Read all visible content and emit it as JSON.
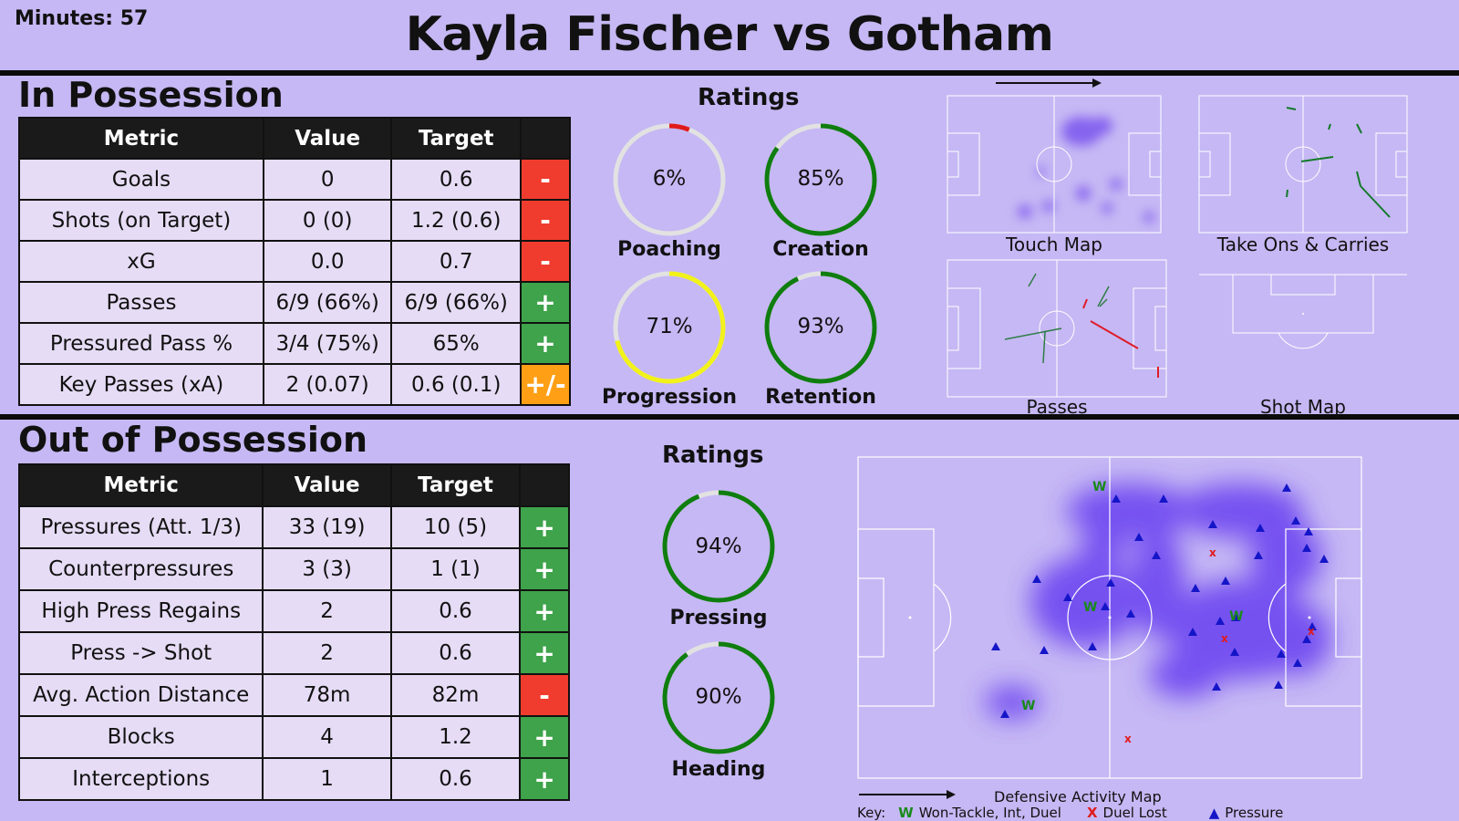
{
  "header": {
    "minutes": "Minutes: 57",
    "title": "Kayla Fischer vs Gotham"
  },
  "in_possession": {
    "title": "In Possession",
    "columns": [
      "Metric",
      "Value",
      "Target",
      ""
    ],
    "rows": [
      {
        "metric": "Goals",
        "value": "0",
        "target": "0.6",
        "status": "-",
        "status_color": "#f03c2e"
      },
      {
        "metric": "Shots (on Target)",
        "value": "0 (0)",
        "target": "1.2 (0.6)",
        "status": "-",
        "status_color": "#f03c2e"
      },
      {
        "metric": "xG",
        "value": "0.0",
        "target": "0.7",
        "status": "-",
        "status_color": "#f03c2e"
      },
      {
        "metric": "Passes",
        "value": "6/9 (66%)",
        "target": "6/9 (66%)",
        "status": "+",
        "status_color": "#3ea34a"
      },
      {
        "metric": "Pressured Pass %",
        "value": "3/4 (75%)",
        "target": "65%",
        "status": "+",
        "status_color": "#3ea34a"
      },
      {
        "metric": "Key Passes (xA)",
        "value": "2 (0.07)",
        "target": "0.6 (0.1)",
        "status": "+/-",
        "status_color": "#ff9f16"
      }
    ],
    "ratings_title": "Ratings",
    "ratings": [
      {
        "label": "Poaching",
        "value": "6%",
        "fraction": 0.06,
        "color": "#e01b1b"
      },
      {
        "label": "Creation",
        "value": "85%",
        "fraction": 0.85,
        "color": "#0f7d0f"
      },
      {
        "label": "Progression",
        "value": "71%",
        "fraction": 0.71,
        "color": "#f2f21a"
      },
      {
        "label": "Retention",
        "value": "93%",
        "fraction": 0.93,
        "color": "#0f7d0f"
      }
    ],
    "maps": [
      "Touch Map",
      "Take Ons & Carries",
      "Passes",
      "Shot Map"
    ]
  },
  "out_of_possession": {
    "title": "Out of Possession",
    "columns": [
      "Metric",
      "Value",
      "Target",
      ""
    ],
    "rows": [
      {
        "metric": "Pressures (Att. 1/3)",
        "value": "33 (19)",
        "target": "10 (5)",
        "status": "+",
        "status_color": "#3ea34a"
      },
      {
        "metric": "Counterpressures",
        "value": "3 (3)",
        "target": "1 (1)",
        "status": "+",
        "status_color": "#3ea34a"
      },
      {
        "metric": "High Press Regains",
        "value": "2",
        "target": "0.6",
        "status": "+",
        "status_color": "#3ea34a"
      },
      {
        "metric": "Press -> Shot",
        "value": "2",
        "target": "0.6",
        "status": "+",
        "status_color": "#3ea34a"
      },
      {
        "metric": "Avg. Action Distance",
        "value": "78m",
        "target": "82m",
        "status": "-",
        "status_color": "#f03c2e"
      },
      {
        "metric": "Blocks",
        "value": "4",
        "target": "1.2",
        "status": "+",
        "status_color": "#3ea34a"
      },
      {
        "metric": "Interceptions",
        "value": "1",
        "target": "0.6",
        "status": "+",
        "status_color": "#3ea34a"
      }
    ],
    "ratings_title": "Ratings",
    "ratings": [
      {
        "label": "Pressing",
        "value": "94%",
        "fraction": 0.94,
        "color": "#0f7d0f"
      },
      {
        "label": "Heading",
        "value": "90%",
        "fraction": 0.9,
        "color": "#0f7d0f"
      }
    ],
    "map_title": "Defensive Activity Map",
    "key": {
      "label": "Key:",
      "won": "W",
      "won_label": "Won-Tackle, Int, Duel",
      "lost": "X",
      "lost_label": "Duel Lost",
      "pressure_label": "Pressure"
    }
  }
}
